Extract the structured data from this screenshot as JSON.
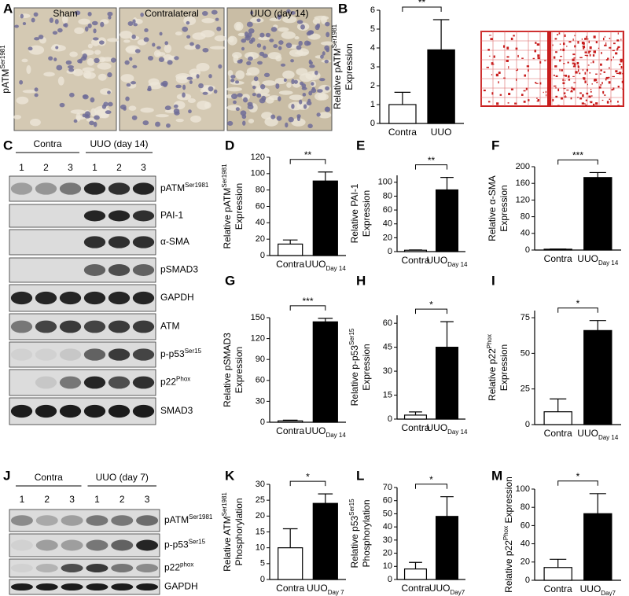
{
  "panel_labels": [
    "A",
    "B",
    "C",
    "D",
    "E",
    "F",
    "G",
    "H",
    "I",
    "J",
    "K",
    "L",
    "M"
  ],
  "histology": {
    "ylabel": {
      "text": "pATM",
      "sup": "Ser1981"
    },
    "titles": [
      "Sham",
      "Contralateral",
      "UUO (day 14)"
    ]
  },
  "blot_c": {
    "groups": [
      "Contra",
      "UUO (day 14)"
    ],
    "lanes": [
      "1",
      "2",
      "3",
      "1",
      "2",
      "3"
    ],
    "rows": [
      {
        "text": "pATM",
        "sup": "Ser1981"
      },
      {
        "text": "PAI-1"
      },
      {
        "text": "α-SMA"
      },
      {
        "text": "pSMAD3"
      },
      {
        "text": "GAPDH"
      },
      {
        "text": "ATM"
      },
      {
        "text": "p-p53",
        "sup": "Ser15"
      },
      {
        "text": "p22",
        "sup": "Phox"
      },
      {
        "text": "SMAD3"
      }
    ]
  },
  "blot_j": {
    "groups": [
      "Contra",
      "UUO (day 7)"
    ],
    "lanes": [
      "1",
      "2",
      "3",
      "1",
      "2",
      "3"
    ],
    "rows": [
      {
        "text": "pATM",
        "sup": "Ser1981"
      },
      {
        "text": "p-p53",
        "sup": "Ser15"
      },
      {
        "text": "p22",
        "sup": "phox"
      },
      {
        "text": "GAPDH"
      }
    ]
  },
  "chart_data": [
    {
      "type": "bar",
      "ylabel": [
        [
          {
            "text": "Relative pATM"
          },
          {
            "sup": "Ser1981"
          }
        ],
        [
          {
            "text": "Expression"
          }
        ]
      ],
      "categories": [
        "Contra",
        "UUO"
      ],
      "values": [
        1.0,
        3.9
      ],
      "errors": [
        0.65,
        1.6
      ],
      "colors": [
        "#ffffff",
        "#000000"
      ],
      "ylim": [
        0,
        6
      ],
      "yticks": [
        0,
        1,
        2,
        3,
        4,
        5,
        6
      ],
      "significance": "**"
    },
    {
      "type": "bar",
      "ylabel": [
        [
          {
            "text": "Relative pATM"
          },
          {
            "sup": "Ser1981"
          }
        ],
        [
          {
            "text": "Expression"
          }
        ]
      ],
      "categories": [
        "Contra",
        "UUO"
      ],
      "category_subscripts": [
        null,
        "Day 14"
      ],
      "values": [
        14,
        91
      ],
      "errors": [
        5,
        11
      ],
      "colors": [
        "#ffffff",
        "#000000"
      ],
      "ylim": [
        0,
        120
      ],
      "yticks": [
        0,
        20,
        40,
        60,
        80,
        100,
        120
      ],
      "significance": "**"
    },
    {
      "type": "bar",
      "ylabel": [
        [
          {
            "text": "Relative PAI-1"
          }
        ],
        [
          {
            "text": "Expression"
          }
        ]
      ],
      "categories": [
        "Contra",
        "UUO"
      ],
      "category_subscripts": [
        null,
        "Day 14"
      ],
      "values": [
        2,
        89
      ],
      "errors": [
        0.5,
        18
      ],
      "colors": [
        "#ffffff",
        "#000000"
      ],
      "ylim": [
        0,
        110
      ],
      "yticks": [
        0,
        20,
        40,
        60,
        80,
        100
      ],
      "significance": "**"
    },
    {
      "type": "bar",
      "ylabel": [
        [
          {
            "text": "Relative α-SMA"
          }
        ],
        [
          {
            "text": "Expression"
          }
        ]
      ],
      "categories": [
        "Contra",
        "UUO"
      ],
      "category_subscripts": [
        null,
        "Day 14"
      ],
      "values": [
        2,
        174
      ],
      "errors": [
        0.5,
        12
      ],
      "colors": [
        "#ffffff",
        "#000000"
      ],
      "ylim": [
        0,
        200
      ],
      "yticks": [
        0,
        40,
        80,
        120,
        160,
        200
      ],
      "significance": "***"
    },
    {
      "type": "bar",
      "ylabel": [
        [
          {
            "text": "Relative pSMAD3"
          }
        ],
        [
          {
            "text": "Expression"
          }
        ]
      ],
      "categories": [
        "Contra",
        "UUO"
      ],
      "category_subscripts": [
        null,
        "Day 14"
      ],
      "values": [
        2,
        144
      ],
      "errors": [
        1,
        5
      ],
      "colors": [
        "#ffffff",
        "#000000"
      ],
      "ylim": [
        0,
        150
      ],
      "yticks": [
        0,
        30,
        60,
        90,
        120,
        150
      ],
      "significance": "***"
    },
    {
      "type": "bar",
      "ylabel": [
        [
          {
            "text": "Relative p-p53"
          },
          {
            "sup": "Ser15"
          }
        ],
        [
          {
            "text": "Expression"
          }
        ]
      ],
      "categories": [
        "Contra",
        "UUO"
      ],
      "category_subscripts": [
        null,
        "Day 14"
      ],
      "values": [
        2.5,
        45
      ],
      "errors": [
        2,
        16
      ],
      "colors": [
        "#ffffff",
        "#000000"
      ],
      "ylim": [
        0,
        65
      ],
      "yticks": [
        0,
        15,
        30,
        45,
        60
      ],
      "significance": "*"
    },
    {
      "type": "bar",
      "ylabel": [
        [
          {
            "text": "Relative p22"
          },
          {
            "sup": "Phox"
          }
        ],
        [
          {
            "text": "Expression"
          }
        ]
      ],
      "categories": [
        "Contra",
        "UUO"
      ],
      "category_subscripts": [
        null,
        "Day 14"
      ],
      "values": [
        9,
        66
      ],
      "errors": [
        9,
        7
      ],
      "colors": [
        "#ffffff",
        "#000000"
      ],
      "ylim": [
        0,
        80
      ],
      "yticks": [
        0,
        25,
        50,
        75
      ],
      "significance": "*"
    },
    {
      "type": "bar",
      "ylabel": [
        [
          {
            "text": "Relative ATM"
          },
          {
            "sup": "Ser1981"
          }
        ],
        [
          {
            "text": "Phosphorylation"
          }
        ]
      ],
      "categories": [
        "Contra",
        "UUO"
      ],
      "category_subscripts": [
        null,
        "Day 7"
      ],
      "values": [
        10,
        24
      ],
      "errors": [
        6,
        3
      ],
      "colors": [
        "#ffffff",
        "#000000"
      ],
      "ylim": [
        0,
        30
      ],
      "yticks": [
        0,
        5,
        10,
        15,
        20,
        25,
        30
      ],
      "significance": "*"
    },
    {
      "type": "bar",
      "ylabel": [
        [
          {
            "text": "Relative p53"
          },
          {
            "sup": "Ser15"
          }
        ],
        [
          {
            "text": "Phosphorylation"
          }
        ]
      ],
      "categories": [
        "Contra",
        "UUO"
      ],
      "category_subscripts": [
        null,
        "Day7"
      ],
      "values": [
        8,
        48
      ],
      "errors": [
        5,
        15
      ],
      "colors": [
        "#ffffff",
        "#000000"
      ],
      "ylim": [
        0,
        70
      ],
      "yticks": [
        0,
        10,
        20,
        30,
        40,
        50,
        60,
        70
      ],
      "significance": "*"
    },
    {
      "type": "bar",
      "ylabel": [
        [
          {
            "text": "Relative p22"
          },
          {
            "sup": "Phox"
          },
          {
            "text": " Expression"
          }
        ]
      ],
      "categories": [
        "Contra",
        "UUO"
      ],
      "category_subscripts": [
        null,
        "Day7"
      ],
      "values": [
        14,
        73
      ],
      "errors": [
        9,
        22
      ],
      "colors": [
        "#ffffff",
        "#000000"
      ],
      "ylim": [
        0,
        100
      ],
      "yticks": [
        0,
        20,
        40,
        60,
        80,
        100
      ],
      "significance": "*"
    }
  ]
}
